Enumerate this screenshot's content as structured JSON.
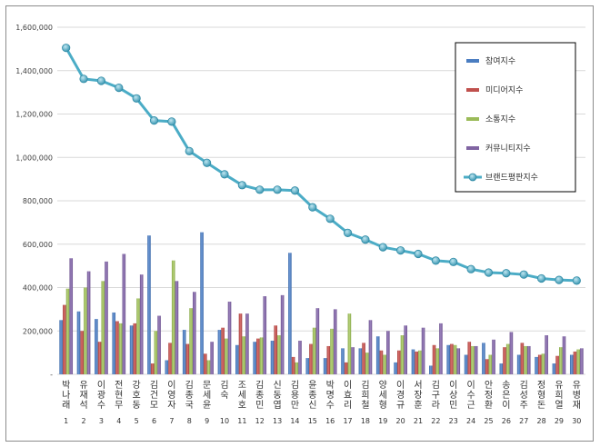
{
  "chart_data": {
    "type": "bar",
    "y_ticks": [
      "-",
      "200,000",
      "400,000",
      "600,000",
      "800,000",
      "1,000,000",
      "1,200,000",
      "1,400,000",
      "1,600,000"
    ],
    "ylim": [
      0,
      1600000
    ],
    "grid": true,
    "legend_position": "top-right",
    "categories": [
      {
        "name": "박나래",
        "rank": "1"
      },
      {
        "name": "유재석",
        "rank": "2"
      },
      {
        "name": "이광수",
        "rank": "3"
      },
      {
        "name": "전현무",
        "rank": "4"
      },
      {
        "name": "강호동",
        "rank": "5"
      },
      {
        "name": "김건모",
        "rank": "6"
      },
      {
        "name": "이영자",
        "rank": "7"
      },
      {
        "name": "김종국",
        "rank": "8"
      },
      {
        "name": "문세윤",
        "rank": "9"
      },
      {
        "name": "김숙",
        "rank": "10"
      },
      {
        "name": "조세호",
        "rank": "11"
      },
      {
        "name": "김종민",
        "rank": "12"
      },
      {
        "name": "신동엽",
        "rank": "13"
      },
      {
        "name": "김용만",
        "rank": "14"
      },
      {
        "name": "윤종신",
        "rank": "15"
      },
      {
        "name": "박명수",
        "rank": "16"
      },
      {
        "name": "이효리",
        "rank": "17"
      },
      {
        "name": "김희철",
        "rank": "18"
      },
      {
        "name": "양세형",
        "rank": "19"
      },
      {
        "name": "이경규",
        "rank": "20"
      },
      {
        "name": "서장훈",
        "rank": "21"
      },
      {
        "name": "김구라",
        "rank": "22"
      },
      {
        "name": "이상민",
        "rank": "23"
      },
      {
        "name": "이수근",
        "rank": "24"
      },
      {
        "name": "안정환",
        "rank": "25"
      },
      {
        "name": "송은이",
        "rank": "26"
      },
      {
        "name": "김성주",
        "rank": "27"
      },
      {
        "name": "정형돈",
        "rank": "28"
      },
      {
        "name": "유희열",
        "rank": "29"
      },
      {
        "name": "유병재",
        "rank": "30"
      }
    ],
    "series": [
      {
        "name": "참여지수",
        "kind": "bar",
        "color": "#4a7dc1",
        "values": [
          250000,
          290000,
          255000,
          285000,
          225000,
          640000,
          65000,
          205000,
          655000,
          205000,
          135000,
          150000,
          155000,
          560000,
          75000,
          75000,
          120000,
          120000,
          175000,
          55000,
          115000,
          40000,
          135000,
          90000,
          145000,
          50000,
          90000,
          80000,
          50000,
          90000
        ]
      },
      {
        "name": "미디어지수",
        "kind": "bar",
        "color": "#c0504d",
        "values": [
          320000,
          200000,
          150000,
          245000,
          235000,
          50000,
          145000,
          140000,
          95000,
          215000,
          280000,
          165000,
          225000,
          80000,
          140000,
          130000,
          55000,
          145000,
          110000,
          110000,
          105000,
          135000,
          140000,
          150000,
          70000,
          125000,
          145000,
          90000,
          85000,
          105000
        ]
      },
      {
        "name": "소통지수",
        "kind": "bar",
        "color": "#9bbb59",
        "values": [
          395000,
          400000,
          430000,
          235000,
          350000,
          200000,
          525000,
          305000,
          65000,
          165000,
          175000,
          170000,
          180000,
          55000,
          215000,
          210000,
          280000,
          100000,
          90000,
          180000,
          110000,
          120000,
          135000,
          130000,
          90000,
          140000,
          130000,
          95000,
          125000,
          115000
        ]
      },
      {
        "name": "커뮤니티지수",
        "kind": "bar",
        "color": "#8064a2",
        "values": [
          535000,
          475000,
          520000,
          555000,
          460000,
          270000,
          430000,
          380000,
          150000,
          335000,
          280000,
          360000,
          365000,
          155000,
          305000,
          300000,
          125000,
          250000,
          200000,
          225000,
          215000,
          235000,
          120000,
          130000,
          160000,
          195000,
          130000,
          180000,
          175000,
          120000
        ]
      },
      {
        "name": "브랜드평판지수",
        "kind": "line",
        "color": "#4bacc6",
        "values": [
          1505000,
          1362000,
          1353000,
          1321000,
          1272000,
          1170000,
          1165000,
          1029000,
          975000,
          922000,
          872000,
          851000,
          851000,
          847000,
          770000,
          717000,
          652000,
          621000,
          586000,
          571000,
          555000,
          524000,
          518000,
          485000,
          469000,
          466000,
          460000,
          442000,
          435000,
          432000
        ]
      }
    ]
  }
}
